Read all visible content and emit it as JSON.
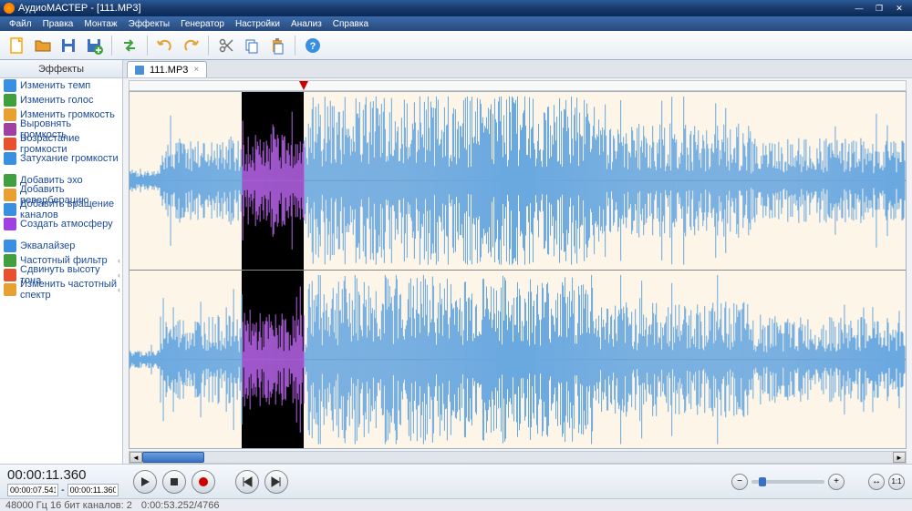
{
  "window": {
    "title": "АудиоМАСТЕР - [111.MP3]"
  },
  "menu": {
    "items": [
      "Файл",
      "Правка",
      "Монтаж",
      "Эффекты",
      "Генератор",
      "Настройки",
      "Анализ",
      "Справка"
    ]
  },
  "toolbar": {
    "icons": [
      {
        "name": "new-file-icon",
        "svg": "doc",
        "color": "#ffa500"
      },
      {
        "name": "open-file-icon",
        "svg": "folder",
        "color": "#e8a030"
      },
      {
        "name": "save-icon",
        "svg": "floppy",
        "color": "#3a70c0"
      },
      {
        "name": "save-as-icon",
        "svg": "floppy-plus",
        "color": "#3a70c0"
      },
      {
        "name": "sep"
      },
      {
        "name": "convert-icon",
        "svg": "arrows",
        "color": "#40a040"
      },
      {
        "name": "sep"
      },
      {
        "name": "undo-icon",
        "svg": "undo",
        "color": "#e8a030"
      },
      {
        "name": "redo-icon",
        "svg": "redo",
        "color": "#e8a030"
      },
      {
        "name": "sep"
      },
      {
        "name": "cut-icon",
        "svg": "scissors",
        "color": "#707070"
      },
      {
        "name": "copy-icon",
        "svg": "copy",
        "color": "#3a70c0"
      },
      {
        "name": "paste-icon",
        "svg": "paste",
        "color": "#e8a030"
      },
      {
        "name": "sep"
      },
      {
        "name": "help-icon",
        "svg": "help",
        "color": "#3a90e0"
      }
    ]
  },
  "sidebar": {
    "title": "Эффекты",
    "groups": [
      [
        {
          "label": "Изменить темп",
          "icon_color": "#3a90e0"
        },
        {
          "label": "Изменить голос",
          "icon_color": "#40a040"
        },
        {
          "label": "Изменить громкость",
          "icon_color": "#e8a030"
        },
        {
          "label": "Выровнять громкость",
          "icon_color": "#a040a0"
        },
        {
          "label": "Возрастание громкости",
          "icon_color": "#e85030"
        },
        {
          "label": "Затухание громкости",
          "icon_color": "#3a90e0"
        }
      ],
      [
        {
          "label": "Добавить эхо",
          "icon_color": "#40a040"
        },
        {
          "label": "Добавить реверберацию",
          "icon_color": "#e8a030"
        },
        {
          "label": "Добавить вращение каналов",
          "icon_color": "#3a90e0"
        },
        {
          "label": "Создать атмосферу",
          "icon_color": "#a040e0"
        }
      ],
      [
        {
          "label": "Эквалайзер",
          "icon_color": "#3a90e0",
          "chev": false
        },
        {
          "label": "Частотный фильтр",
          "icon_color": "#40a040",
          "chev": true
        },
        {
          "label": "Сдвинуть высоту тона",
          "icon_color": "#e85030",
          "chev": true
        },
        {
          "label": "Изменить частотный спектр",
          "icon_color": "#e8a030",
          "chev": true
        }
      ]
    ]
  },
  "tab": {
    "label": "111.MP3"
  },
  "waveform": {
    "background_color": "#fdf6e8",
    "wave_color": "#6aa8e0",
    "selection_wave_color": "#b060e0",
    "selection_bg": "#000000",
    "center_line": "#606060",
    "selection_left_pct": 14.5,
    "selection_right_pct": 22.5,
    "playhead_pct": 22.5,
    "channels": 2
  },
  "scroll": {
    "thumb_width_pct": 8
  },
  "transport": {
    "time_display": "00:00:11.360",
    "range_from": "00:00:07.541",
    "range_to": "00:00:11.360"
  },
  "zoom": {
    "position_pct": 10
  },
  "status": {
    "left": "48000 Гц  16 бит  каналов: 2",
    "right": "0:00:53.252/4766"
  },
  "colors": {
    "title_grad_top": "#2a5a9a",
    "title_grad_bot": "#0a2a5a",
    "accent": "#3a70c0"
  }
}
